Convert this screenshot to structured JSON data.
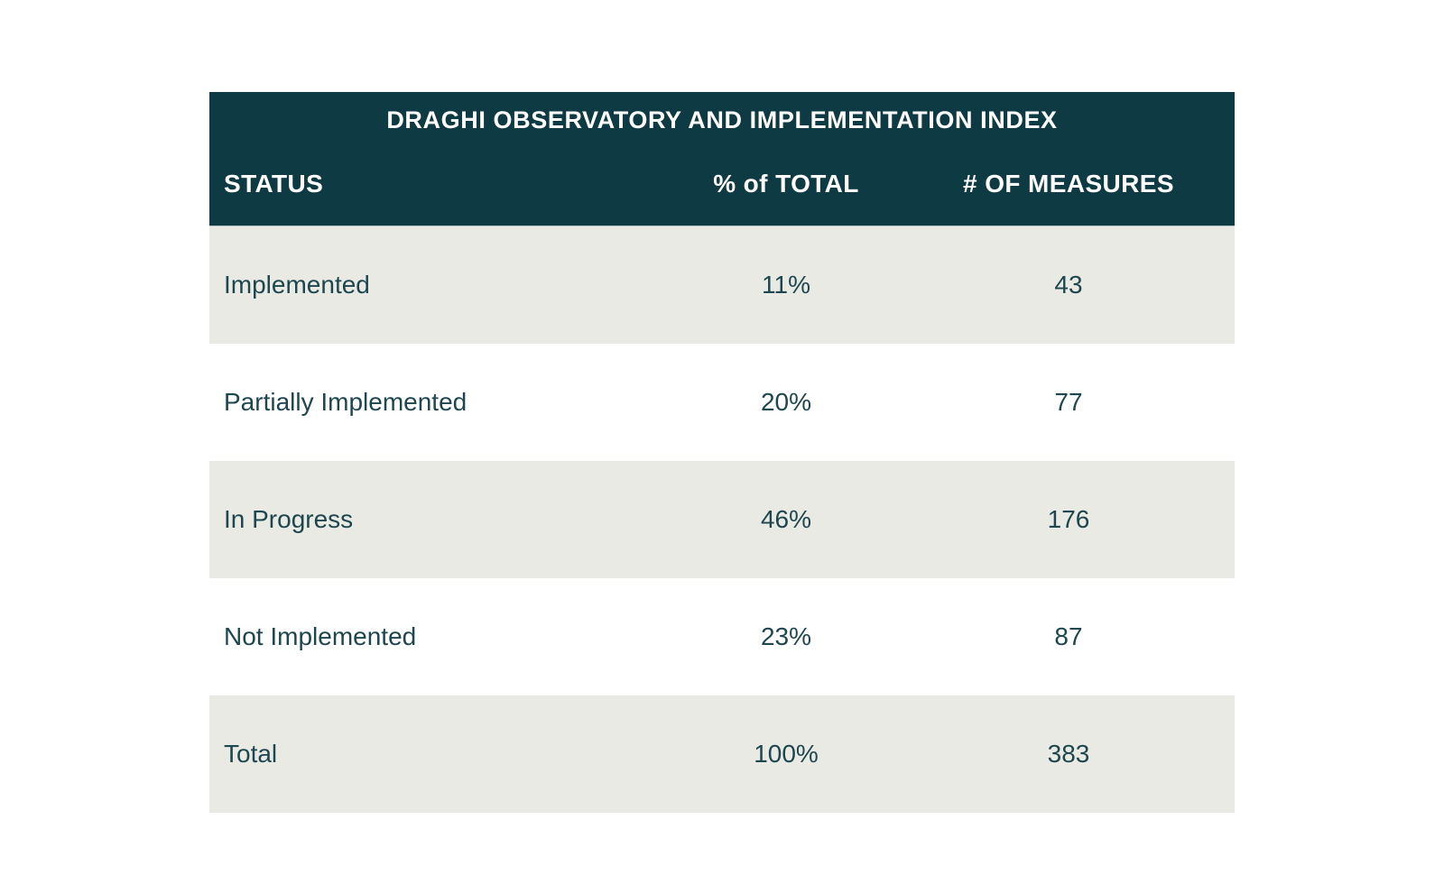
{
  "table": {
    "title": "DRAGHI OBSERVATORY AND IMPLEMENTATION INDEX",
    "columns": {
      "status": "STATUS",
      "pct": "% of TOTAL",
      "measures": "# OF MEASURES"
    },
    "rows": [
      {
        "status": "Implemented",
        "pct": "11%",
        "measures": "43"
      },
      {
        "status": "Partially Implemented",
        "pct": "20%",
        "measures": "77"
      },
      {
        "status": "In Progress",
        "pct": "46%",
        "measures": "176"
      },
      {
        "status": "Not Implemented",
        "pct": "23%",
        "measures": "87"
      },
      {
        "status": "Total",
        "pct": "100%",
        "measures": "383"
      }
    ]
  },
  "colors": {
    "header_bg": "#0e3a44",
    "header_text": "#ffffff",
    "row_alt_bg": "#eaeae4",
    "body_text": "#1e464e",
    "page_bg": "#ffffff"
  },
  "chart_data": {
    "type": "table",
    "title": "DRAGHI OBSERVATORY AND IMPLEMENTATION INDEX",
    "columns": [
      "STATUS",
      "% of TOTAL",
      "# OF MEASURES"
    ],
    "rows": [
      [
        "Implemented",
        "11%",
        43
      ],
      [
        "Partially Implemented",
        "20%",
        77
      ],
      [
        "In Progress",
        "46%",
        176
      ],
      [
        "Not Implemented",
        "23%",
        87
      ],
      [
        "Total",
        "100%",
        383
      ]
    ],
    "layout": "alternating row shading (gray/white), dark teal header band with centered title and column header row; status column left-aligned, numeric columns centered"
  }
}
